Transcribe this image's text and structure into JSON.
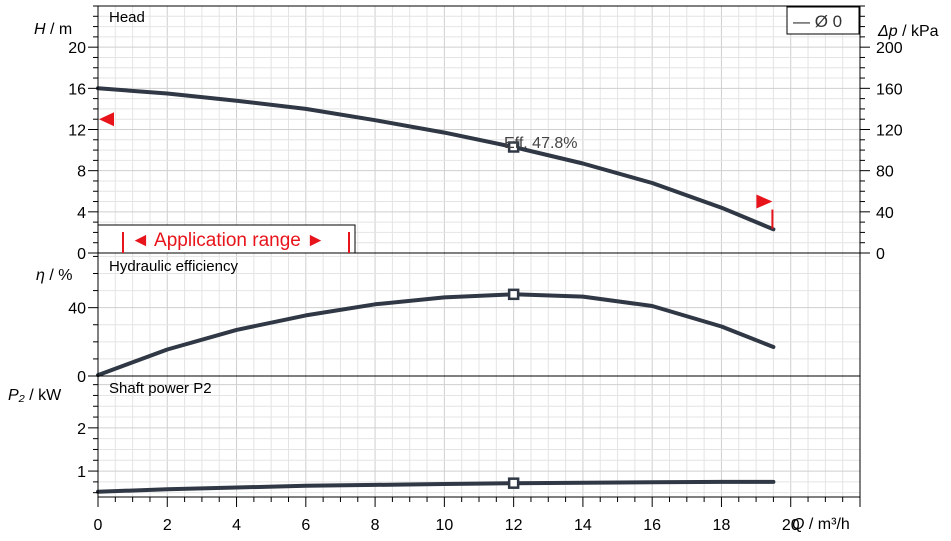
{
  "chart_data": {
    "type": "line",
    "x_axis": {
      "label_symbol": "Q",
      "label_unit": " / m³/h",
      "range": [
        0,
        22
      ],
      "ticks": [
        0,
        2,
        4,
        6,
        8,
        10,
        12,
        14,
        16,
        18,
        20
      ]
    },
    "legend": {
      "label": "— Ø 0",
      "placement": "top-right"
    },
    "panels": [
      {
        "id": "head",
        "title": "Head",
        "y_label_symbol": "H",
        "y_label_unit": " / m",
        "ylim": [
          0,
          24
        ],
        "y_ticks": [
          0,
          4,
          8,
          12,
          16,
          20
        ],
        "secondary_axis": {
          "label_symbol": "Δp",
          "label_unit": " / kPa",
          "ticks": [
            0,
            40,
            80,
            120,
            160,
            200
          ]
        },
        "series": [
          {
            "x": [
              0,
              2,
              4,
              6,
              8,
              10,
              12,
              14,
              16,
              18,
              19.5
            ],
            "y": [
              16.0,
              15.5,
              14.8,
              14.0,
              12.9,
              11.7,
              10.3,
              8.7,
              6.8,
              4.4,
              2.3
            ]
          }
        ],
        "duty_point": {
          "x": 12,
          "y": 10.3
        },
        "annotation": "Eff.  47.8%",
        "application_range": {
          "label": "◄ Application range ►",
          "x_min": 0.75,
          "x_max": 7.4
        },
        "range_markers": {
          "left_y": 13.0,
          "right_x": 19.5,
          "right_y": 5.0
        }
      },
      {
        "id": "efficiency",
        "title": "Hydraulic efficiency",
        "y_label_symbol": "η",
        "y_label_unit": " / %",
        "ylim": [
          0,
          72
        ],
        "y_ticks": [
          0,
          40
        ],
        "series": [
          {
            "x": [
              0,
              2,
              4,
              6,
              8,
              10,
              12,
              14,
              16,
              18,
              19.5
            ],
            "y": [
              0.5,
              15.5,
              27.0,
              35.5,
              42.0,
              46.0,
              47.8,
              46.5,
              41.0,
              29.0,
              17.0
            ]
          }
        ],
        "duty_point": {
          "x": 12,
          "y": 47.8
        }
      },
      {
        "id": "power",
        "title": "Shaft power P2",
        "y_label_symbol": "P₂",
        "y_label_unit": " / kW",
        "ylim": [
          0.4,
          3.2
        ],
        "y_ticks": [
          1,
          2
        ],
        "series": [
          {
            "x": [
              0,
              2,
              4,
              6,
              8,
              10,
              12,
              14,
              16,
              18,
              19.5
            ],
            "y": [
              0.52,
              0.58,
              0.62,
              0.66,
              0.68,
              0.7,
              0.72,
              0.73,
              0.74,
              0.75,
              0.75
            ]
          }
        ],
        "duty_point": {
          "x": 12,
          "y": 0.72
        }
      }
    ]
  }
}
